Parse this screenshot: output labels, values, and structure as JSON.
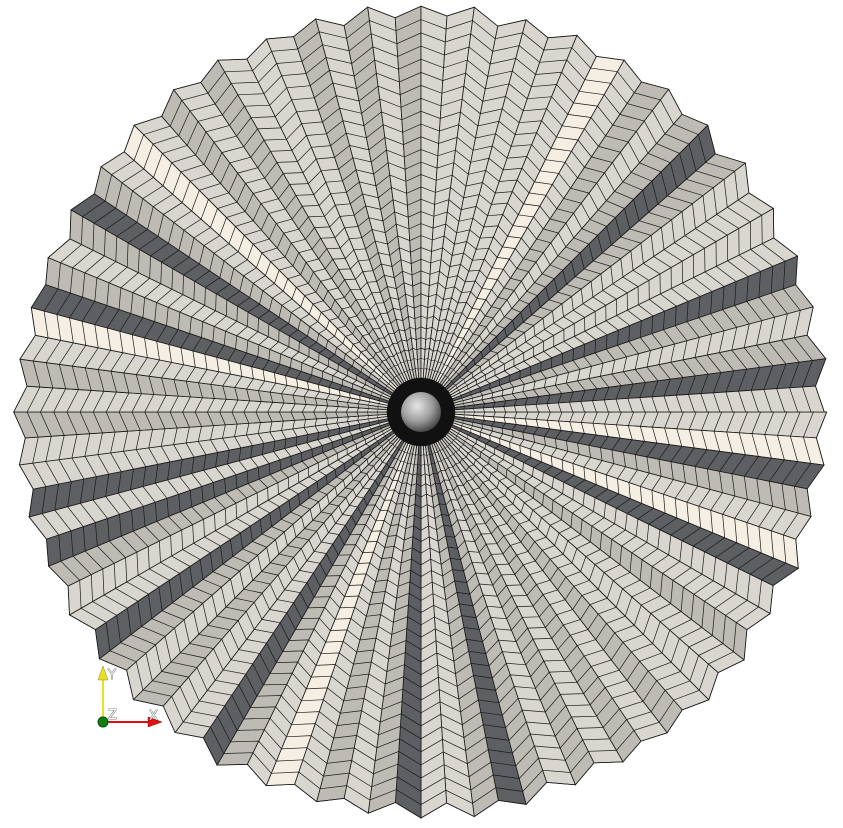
{
  "scene": {
    "background": "#ffffff",
    "mesh_colors": {
      "light": "#d8d6cf",
      "mid": "#bdbbb3",
      "dark": "#5e5f63",
      "grid": "#1a1a1a",
      "highlight": "#f4efe2"
    },
    "sphere_color": "#9c9c9c",
    "radial_panels": 96,
    "rings": 34
  },
  "orientation_axes": {
    "x_label": "X",
    "y_label": "Y",
    "z_label": "Z",
    "x_color": "#e01010",
    "y_color": "#e8e020",
    "z_color": "#108010"
  }
}
